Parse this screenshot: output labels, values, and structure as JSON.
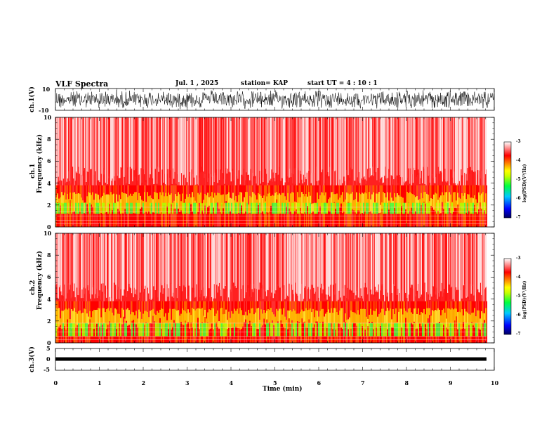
{
  "header": {
    "title": "VLF Spectra",
    "date": "Jul. 1 , 2025",
    "station": "station= KAP",
    "start": "start UT = 4 : 10 : 1"
  },
  "colors": {
    "waveform": "#000000",
    "spectrogram_scale": [
      "#000080",
      "#0000ff",
      "#00c8ff",
      "#00ff40",
      "#b0ff00",
      "#ffff00",
      "#ff8000",
      "#ff0000",
      "#ff8080",
      "#ffffff"
    ]
  },
  "chart_data": [
    {
      "type": "line",
      "name": "ch1-waveform",
      "ylabel": "ch.1(V)",
      "ylim": [
        -10,
        10
      ],
      "y_ticks": [
        "10",
        "-10"
      ],
      "xlim": [
        0,
        10
      ],
      "description_level": "dense noisy waveform, amplitude about ±5 V"
    },
    {
      "type": "heatmap",
      "name": "ch1-spectrogram",
      "ylabel": "ch.1\nFrequency (kHz)",
      "ylabel_line1": "ch.1",
      "ylabel_line2": "Frequency (kHz)",
      "ylim": [
        0,
        10
      ],
      "y_ticks": [
        "0",
        "2",
        "4",
        "6",
        "8",
        "10"
      ],
      "xlim": [
        0,
        9.8
      ],
      "colorbar": {
        "label": "log(PSD)(V²/Hz)",
        "range": [
          -7,
          -3
        ],
        "ticks": [
          "-3",
          "-4",
          "-5",
          "-6",
          "-7"
        ]
      }
    },
    {
      "type": "heatmap",
      "name": "ch2-spectrogram",
      "ylabel_line1": "ch.2",
      "ylabel_line2": "Frequency (kHz)",
      "ylim": [
        0,
        10
      ],
      "y_ticks": [
        "0",
        "2",
        "4",
        "6",
        "8",
        "10"
      ],
      "xlim": [
        0,
        9.8
      ],
      "colorbar": {
        "label": "log(PSD)(V²/Hz)",
        "range": [
          -7,
          -3
        ],
        "ticks": [
          "-3",
          "-4",
          "-5",
          "-6",
          "-7"
        ]
      }
    },
    {
      "type": "line",
      "name": "ch3-waveform",
      "ylabel": "ch.3(V)",
      "ylim": [
        -5,
        5
      ],
      "y_ticks": [
        "5",
        "0",
        "-5"
      ],
      "xlim": [
        0,
        10
      ]
    }
  ],
  "x_axis": {
    "label": "Time (min)",
    "ticks": [
      "0",
      "1",
      "2",
      "3",
      "4",
      "5",
      "6",
      "7",
      "8",
      "9",
      "10"
    ]
  }
}
